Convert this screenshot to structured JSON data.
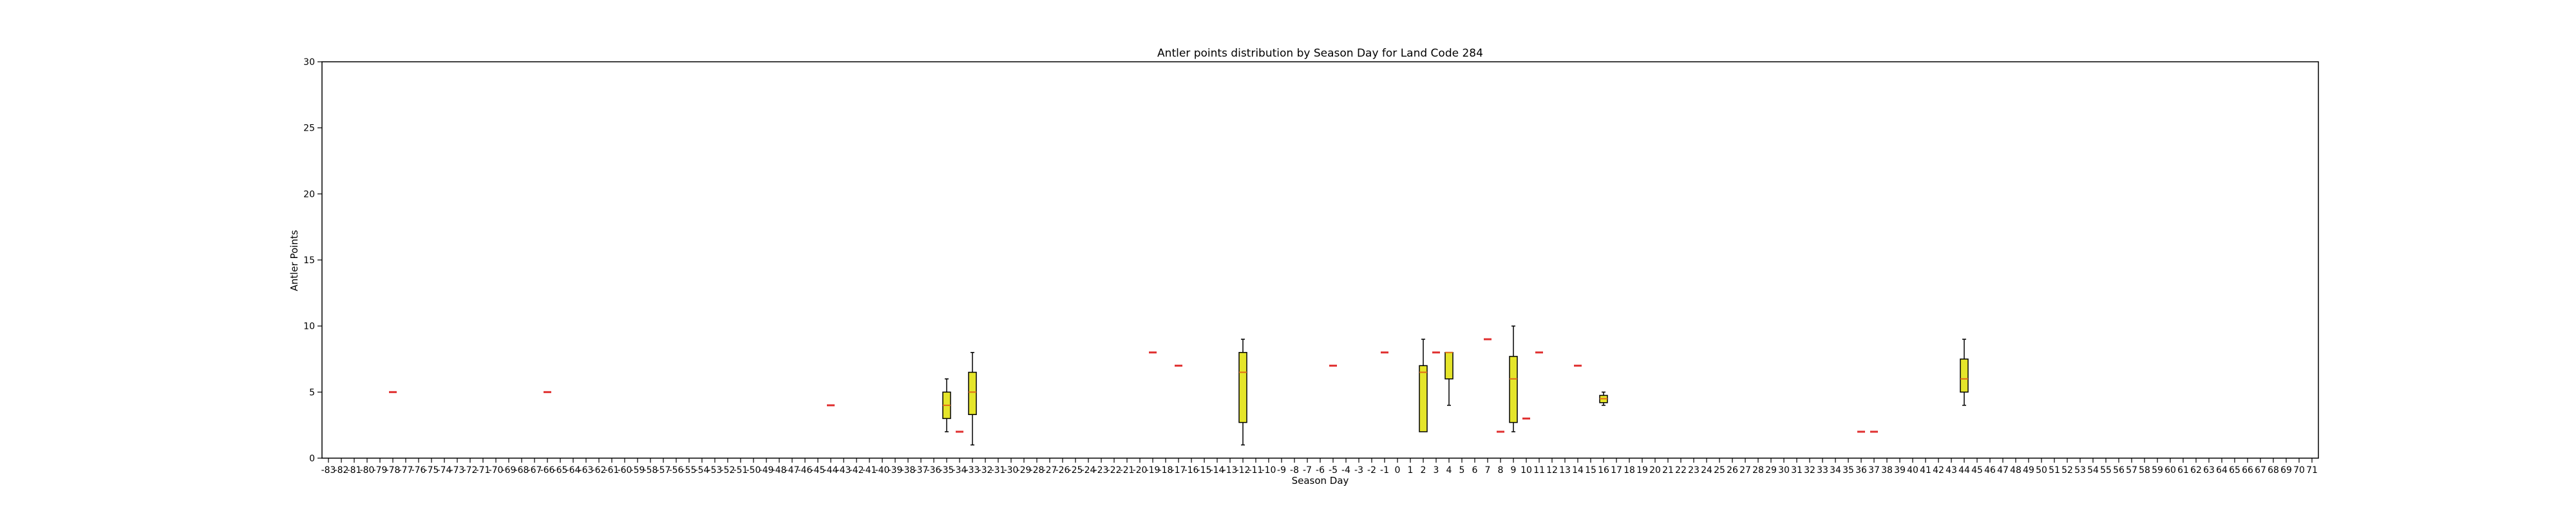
{
  "chart_data": {
    "type": "box",
    "title": "Antler points distribution by Season Day for Land Code 284",
    "xlabel": "Season Day",
    "ylabel": "Antler Points",
    "ylim": [
      0,
      30
    ],
    "yticks": [
      0,
      5,
      10,
      15,
      20,
      25,
      30
    ],
    "x_range": [
      -83,
      71
    ],
    "grid": false,
    "colors": {
      "box_fill": "#e5e52a",
      "median": "#e06b1a",
      "outlier": "#e03030",
      "frame": "#000000"
    },
    "boxes": [
      {
        "day": -78,
        "min": 5,
        "q1": 5,
        "median": 5,
        "q3": 5,
        "max": 5
      },
      {
        "day": -66,
        "min": 5,
        "q1": 5,
        "median": 5,
        "q3": 5,
        "max": 5
      },
      {
        "day": -44,
        "min": 4,
        "q1": 4,
        "median": 4,
        "q3": 4,
        "max": 4
      },
      {
        "day": -35,
        "min": 2,
        "q1": 3,
        "median": 4,
        "q3": 5,
        "max": 6
      },
      {
        "day": -34,
        "min": 2,
        "q1": 2,
        "median": 2,
        "q3": 2,
        "max": 2
      },
      {
        "day": -33,
        "min": 1,
        "q1": 3.3,
        "median": 5,
        "q3": 6.5,
        "max": 8
      },
      {
        "day": -19,
        "min": 8,
        "q1": 8,
        "median": 8,
        "q3": 8,
        "max": 8
      },
      {
        "day": -17,
        "min": 7,
        "q1": 7,
        "median": 7,
        "q3": 7,
        "max": 7
      },
      {
        "day": -12,
        "min": 1,
        "q1": 2.7,
        "median": 6.5,
        "q3": 8,
        "max": 9
      },
      {
        "day": -5,
        "min": 7,
        "q1": 7,
        "median": 7,
        "q3": 7,
        "max": 7
      },
      {
        "day": -1,
        "min": 8,
        "q1": 8,
        "median": 8,
        "q3": 8,
        "max": 8
      },
      {
        "day": 2,
        "min": 2,
        "q1": 2,
        "median": 6.5,
        "q3": 7,
        "max": 9
      },
      {
        "day": 3,
        "min": 8,
        "q1": 8,
        "median": 8,
        "q3": 8,
        "max": 8
      },
      {
        "day": 4,
        "min": 4,
        "q1": 6,
        "median": 8,
        "q3": 8,
        "max": 8
      },
      {
        "day": 7,
        "min": 9,
        "q1": 9,
        "median": 9,
        "q3": 9,
        "max": 9
      },
      {
        "day": 8,
        "min": 2,
        "q1": 2,
        "median": 2,
        "q3": 2,
        "max": 2
      },
      {
        "day": 9,
        "min": 2,
        "q1": 2.7,
        "median": 6,
        "q3": 7.7,
        "max": 10
      },
      {
        "day": 10,
        "min": 3,
        "q1": 3,
        "median": 3,
        "q3": 3,
        "max": 3
      },
      {
        "day": 11,
        "min": 8,
        "q1": 8,
        "median": 8,
        "q3": 8,
        "max": 8
      },
      {
        "day": 14,
        "min": 7,
        "q1": 7,
        "median": 7,
        "q3": 7,
        "max": 7
      },
      {
        "day": 16,
        "min": 4,
        "q1": 4.2,
        "median": 4.5,
        "q3": 4.75,
        "max": 5
      },
      {
        "day": 36,
        "min": 2,
        "q1": 2,
        "median": 2,
        "q3": 2,
        "max": 2
      },
      {
        "day": 37,
        "min": 2,
        "q1": 2,
        "median": 2,
        "q3": 2,
        "max": 2
      },
      {
        "day": 44,
        "min": 4,
        "q1": 5,
        "median": 6,
        "q3": 7.5,
        "max": 9
      }
    ]
  }
}
